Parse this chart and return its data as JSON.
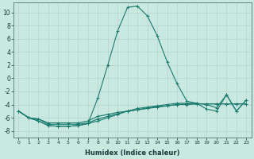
{
  "xlabel": "Humidex (Indice chaleur)",
  "x": [
    0,
    1,
    2,
    3,
    4,
    5,
    6,
    7,
    8,
    9,
    10,
    11,
    12,
    13,
    14,
    15,
    16,
    17,
    18,
    19,
    20,
    21,
    22,
    23
  ],
  "lines": [
    [
      -5,
      -6,
      -6.2,
      -6.8,
      -6.8,
      -6.8,
      -6.8,
      -6.5,
      -5.8,
      -5.5,
      -5.2,
      -5.0,
      -4.8,
      -4.6,
      -4.4,
      -4.2,
      -4.0,
      -4.0,
      -3.9,
      -3.9,
      -3.9,
      -3.9,
      -3.9,
      -3.9
    ],
    [
      -5,
      -6,
      -6.2,
      -7.0,
      -7.0,
      -7.0,
      -7.0,
      -6.8,
      -6.2,
      -5.8,
      -5.4,
      -5.0,
      -4.8,
      -4.5,
      -4.3,
      -4.2,
      -4.0,
      -3.9,
      -3.9,
      -3.9,
      -3.9,
      -3.9,
      -3.9,
      -3.9
    ],
    [
      -5,
      -6,
      -6.5,
      -7.2,
      -7.3,
      -7.3,
      -7.2,
      -6.9,
      -6.5,
      -6.0,
      -5.5,
      -5.0,
      -4.6,
      -4.4,
      -4.2,
      -4.0,
      -3.8,
      -3.8,
      -3.8,
      -4.7,
      -5.0,
      -2.5,
      -5.0,
      -3.3
    ],
    [
      -5,
      -6,
      -6.5,
      -7.2,
      -7.3,
      -7.3,
      -7.2,
      -6.9,
      -3.0,
      2.0,
      7.2,
      10.8,
      11.0,
      9.5,
      6.5,
      2.5,
      -0.8,
      -3.5,
      -3.8,
      -4.0,
      -4.5,
      -2.5,
      -5.0,
      -3.3
    ]
  ],
  "line_color": "#1a7a6e",
  "bg_color": "#c8e8e0",
  "grid_color": "#b0cccc",
  "ylim": [
    -9,
    11.5
  ],
  "yticks": [
    -8,
    -6,
    -4,
    -2,
    0,
    2,
    4,
    6,
    8,
    10
  ],
  "xlim": [
    -0.5,
    23.5
  ],
  "figsize": [
    3.2,
    2.0
  ],
  "dpi": 100
}
